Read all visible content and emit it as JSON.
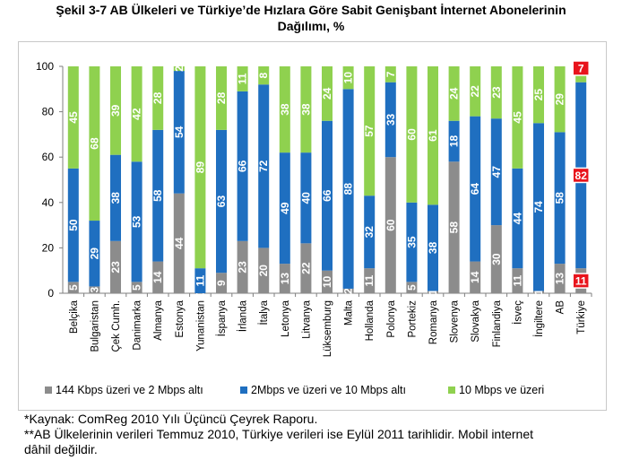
{
  "title_line1": "Şekil 3-7 AB Ülkeleri ve Türkiye’de Hızlara Göre Sabit Genişbant İnternet Abonelerinin",
  "title_line2": "Dağılımı, %",
  "footnote1": "*Kaynak: ComReg 2010 Yılı Üçüncü Çeyrek Raporu.",
  "footnote2": "**AB Ülkelerinin verileri Temmuz 2010, Türkiye verileri ise Eylül 2011 tarihlidir. Mobil internet",
  "footnote3": "dâhil değildir.",
  "colors": {
    "gray": "#8c8c8c",
    "blue": "#1f6fc0",
    "green": "#8fd14f",
    "highlight": "#e8141c"
  },
  "chart_data": {
    "type": "bar",
    "stacked": true,
    "ylim": [
      0,
      100
    ],
    "yticks": [
      0,
      20,
      40,
      60,
      80,
      100
    ],
    "grid": false,
    "legend_position": "bottom",
    "categories": [
      "Belçika",
      "Bulgaristan",
      "Çek Cumh.",
      "Danimarka",
      "Almanya",
      "Estonya",
      "Yunanistan",
      "İspanya",
      "İrlanda",
      "İtalya",
      "Letonya",
      "Litvanya",
      "Lüksemburg",
      "Malta",
      "Hollanda",
      "Polonya",
      "Portekiz",
      "Romanya",
      "Slovenya",
      "Slovakya",
      "Finlandiya",
      "İsveç",
      "İngiltere",
      "AB",
      "Türkiye"
    ],
    "series": [
      {
        "name": "144 Kbps üzeri ve 2 Mbps altı",
        "color": "#8c8c8c",
        "values": [
          5,
          3,
          23,
          5,
          14,
          44,
          0,
          9,
          23,
          20,
          13,
          22,
          10,
          2,
          11,
          60,
          5,
          1,
          58,
          14,
          30,
          11,
          1,
          13,
          11
        ],
        "labels": [
          "5",
          "3",
          "23",
          "5",
          "14",
          "44",
          "0",
          "9",
          "23",
          "20",
          "13",
          "22",
          "10",
          "2",
          "11",
          "60",
          "5",
          "1",
          "58",
          "14",
          "30",
          "11",
          "1",
          "13",
          "11"
        ]
      },
      {
        "name": "2Mbps ve üzeri ve 10 Mbps altı",
        "color": "#1f6fc0",
        "values": [
          50,
          29,
          38,
          53,
          58,
          54,
          11,
          63,
          66,
          72,
          49,
          40,
          66,
          88,
          32,
          33,
          35,
          38,
          18,
          64,
          47,
          44,
          74,
          58,
          82
        ],
        "labels": [
          "50",
          "29",
          "38",
          "53",
          "58",
          "54",
          "11",
          "63",
          "66",
          "72",
          "49",
          "40",
          "66",
          "88",
          "32",
          "33",
          "35",
          "38",
          "18",
          "64",
          "47",
          "44",
          "74",
          "58",
          "82"
        ]
      },
      {
        "name": "10 Mbps ve üzeri",
        "color": "#8fd14f",
        "values": [
          45,
          68,
          39,
          42,
          28,
          2,
          89,
          28,
          11,
          8,
          38,
          38,
          24,
          10,
          57,
          7,
          60,
          61,
          24,
          22,
          23,
          45,
          25,
          29,
          7
        ],
        "labels": [
          "45",
          "68",
          "39",
          "42",
          "28",
          "2",
          "89",
          "28",
          "11",
          "8",
          "38",
          "38",
          "24",
          "10",
          "57",
          "7",
          "60",
          "61",
          "24",
          "22",
          "23",
          "45",
          "25",
          "29",
          "7"
        ]
      }
    ]
  }
}
